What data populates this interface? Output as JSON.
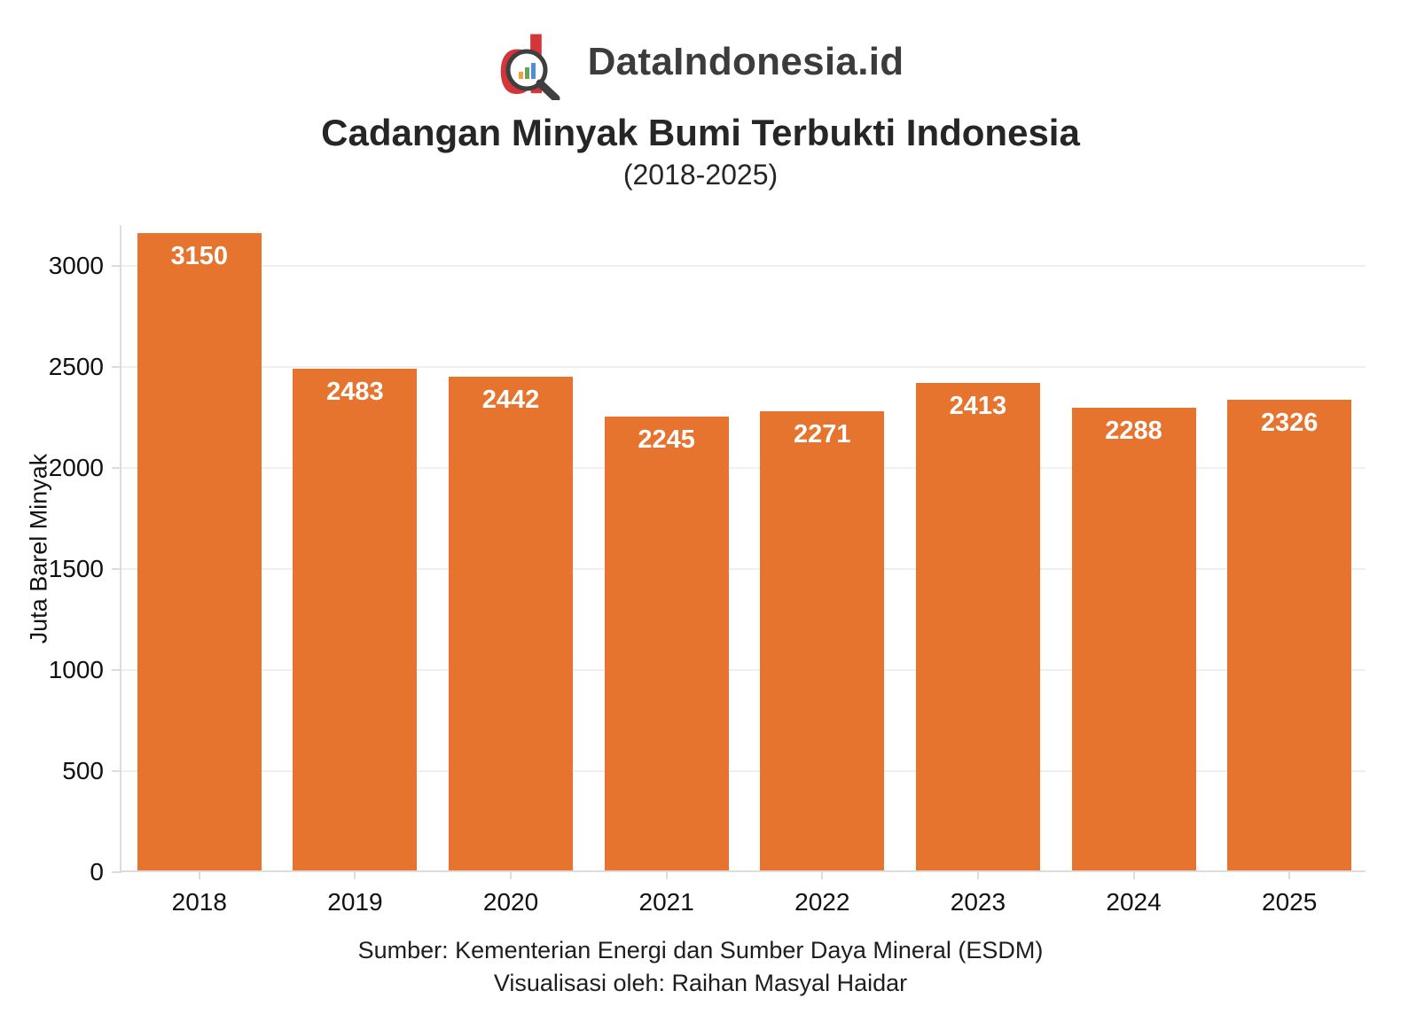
{
  "logo": {
    "brand": "DataIndonesia.id",
    "red": "#d53438",
    "dark": "#3f3f3f"
  },
  "title": "Cadangan Minyak Bumi Terbukti Indonesia",
  "subtitle": "(2018-2025)",
  "chart_data": {
    "type": "bar",
    "categories": [
      "2018",
      "2019",
      "2020",
      "2021",
      "2022",
      "2023",
      "2024",
      "2025"
    ],
    "values": [
      3150,
      2483,
      2442,
      2245,
      2271,
      2413,
      2288,
      2326
    ],
    "title": "Cadangan Minyak Bumi Terbukti Indonesia",
    "subtitle": "(2018-2025)",
    "xlabel": "",
    "ylabel": "Juta Barel Minyak",
    "ylim": [
      0,
      3200
    ],
    "yticks": [
      0,
      500,
      1000,
      1500,
      2000,
      2500,
      3000
    ],
    "bar_color": "#e6732e",
    "value_label_color": "#ffffff",
    "grid": true,
    "legend": false
  },
  "footer": {
    "source": "Sumber: Kementerian Energi dan Sumber Daya Mineral (ESDM)",
    "credit": "Visualisasi oleh: Raihan Masyal Haidar"
  }
}
